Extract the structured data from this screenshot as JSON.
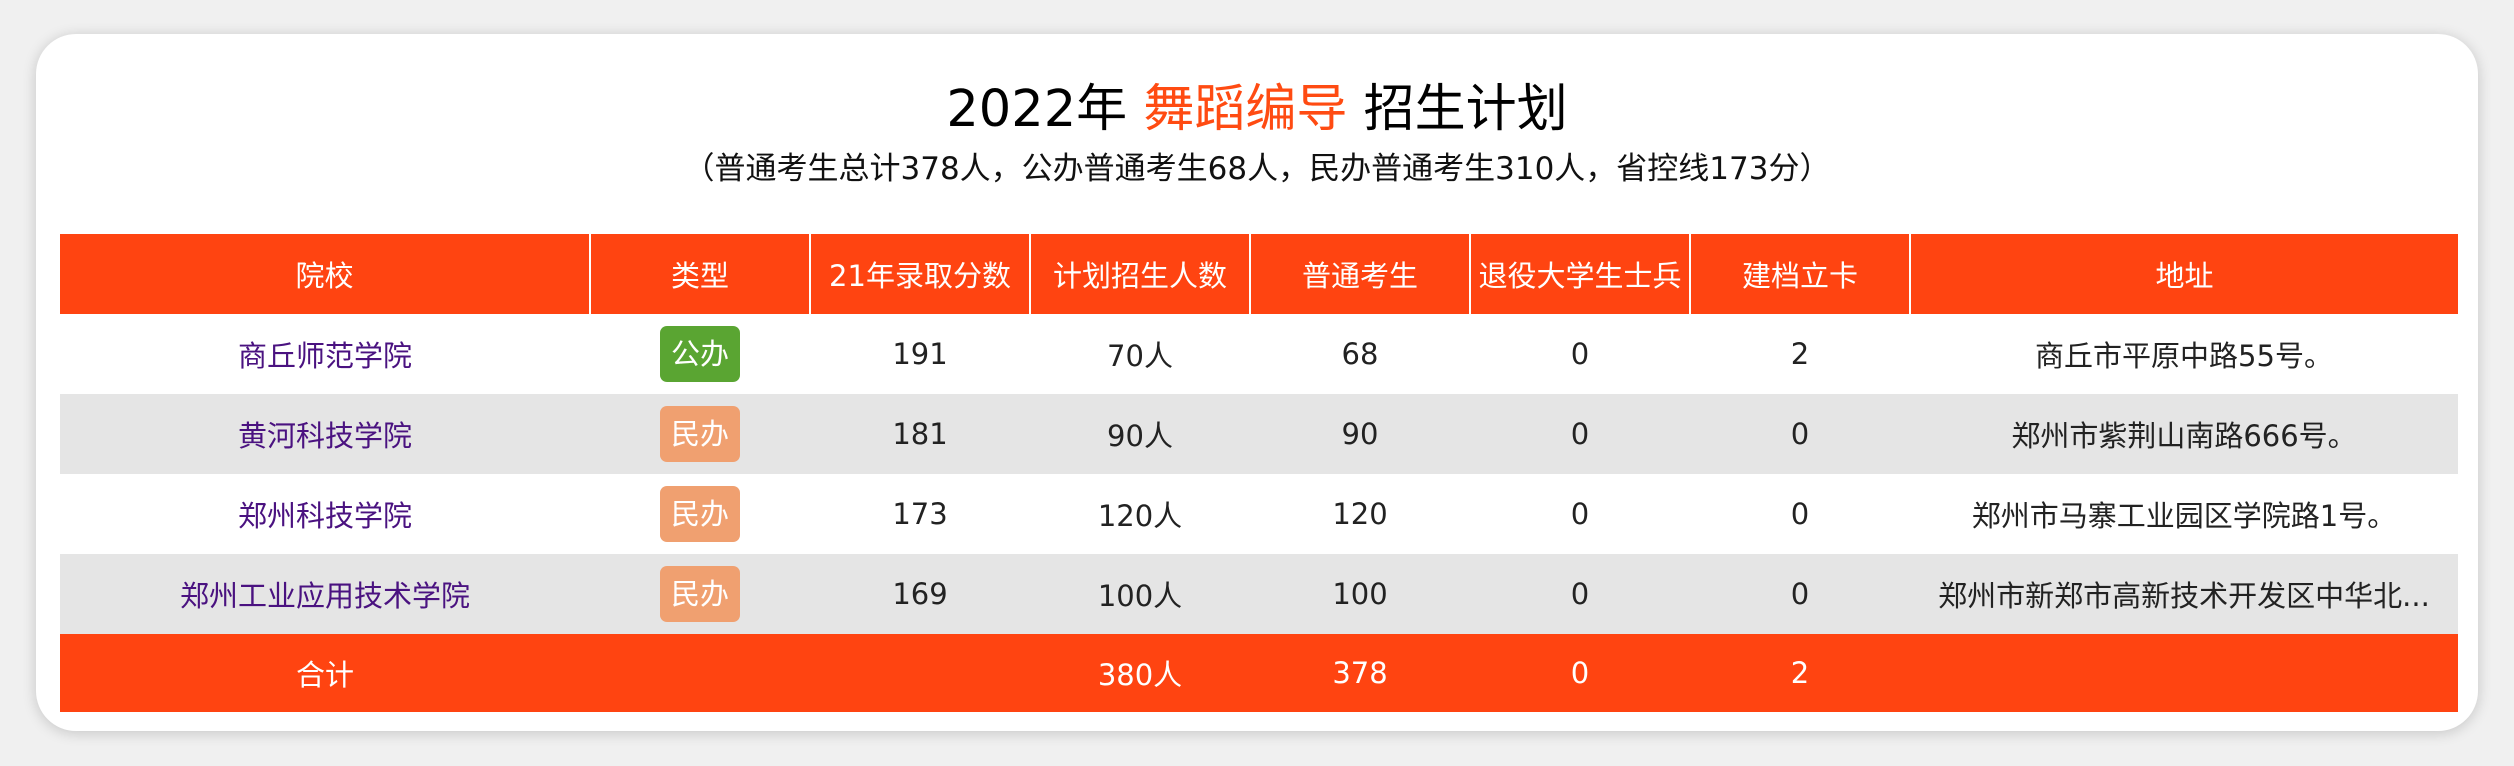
{
  "header": {
    "title_prefix": "2022年",
    "title_accent": "舞蹈编导",
    "title_suffix": "招生计划",
    "subtitle": "（普通考生总计378人，公办普通考生68人，民办普通考生310人，省控线173分）"
  },
  "colors": {
    "accent": "#ff4411",
    "public_badge": "#5aa532",
    "private_badge": "#f0a070",
    "school_text": "#4a1280"
  },
  "table": {
    "columns": [
      "院校",
      "类型",
      "21年录取分数",
      "计划招生人数",
      "普通考生",
      "退役大学生士兵",
      "建档立卡",
      "地址"
    ],
    "rows": [
      {
        "school": "商丘师范学院",
        "type": "公办",
        "type_kind": "public",
        "score": "191",
        "plan": "70人",
        "regular": "68",
        "veteran": "0",
        "poverty": "2",
        "address": "商丘市平原中路55号。"
      },
      {
        "school": "黄河科技学院",
        "type": "民办",
        "type_kind": "private",
        "score": "181",
        "plan": "90人",
        "regular": "90",
        "veteran": "0",
        "poverty": "0",
        "address": "郑州市紫荆山南路666号。"
      },
      {
        "school": "郑州科技学院",
        "type": "民办",
        "type_kind": "private",
        "score": "173",
        "plan": "120人",
        "regular": "120",
        "veteran": "0",
        "poverty": "0",
        "address": "郑州市马寨工业园区学院路1号。"
      },
      {
        "school": "郑州工业应用技术学院",
        "type": "民办",
        "type_kind": "private",
        "score": "169",
        "plan": "100人",
        "regular": "100",
        "veteran": "0",
        "poverty": "0",
        "address": "郑州市新郑市高新技术开发区中华北..."
      }
    ],
    "total": {
      "label": "合计",
      "plan": "380人",
      "regular": "378",
      "veteran": "0",
      "poverty": "2"
    }
  }
}
